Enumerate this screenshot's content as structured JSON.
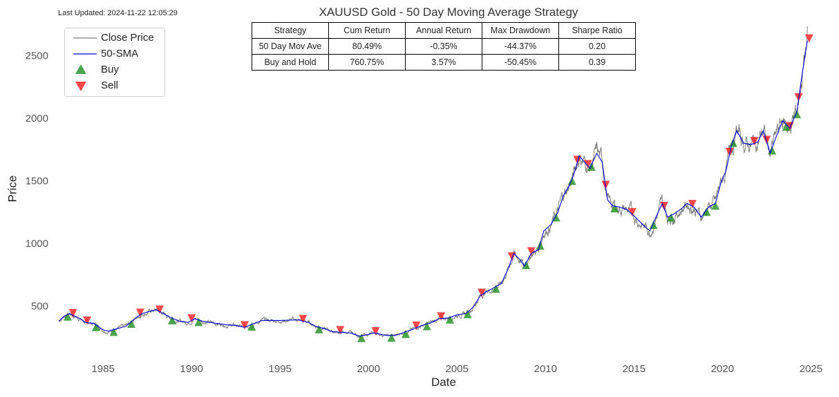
{
  "last_updated": "Last Updated: 2024-11-22 12:05:29",
  "chart_data": {
    "type": "line",
    "title": "XAUUSD Gold - 50 Day Moving Average Strategy",
    "xlabel": "Date",
    "ylabel": "Price",
    "xlim": [
      1982.3,
      2025.1
    ],
    "ylim": [
      100,
      2850
    ],
    "x_ticks": [
      "1985",
      "1990",
      "1995",
      "2000",
      "2005",
      "2010",
      "2015",
      "2020",
      "2025"
    ],
    "y_ticks": [
      "500",
      "1000",
      "1500",
      "2000",
      "2500"
    ],
    "grid": false,
    "legend_position": "top-left",
    "legend": [
      "Close Price",
      "50-SMA",
      "Buy",
      "Sell"
    ],
    "colors": {
      "close": "#808080",
      "sma": "#0000dd",
      "buy": "#1f8f1f",
      "sell": "#ff1a1a"
    },
    "series": [
      {
        "name": "50-SMA",
        "x": [
          1982.5,
          1982.8,
          1983.1,
          1983.4,
          1983.7,
          1984.0,
          1984.5,
          1985.0,
          1985.3,
          1985.8,
          1986.3,
          1986.8,
          1987.2,
          1987.7,
          1988.0,
          1988.4,
          1988.8,
          1989.3,
          1989.8,
          1990.2,
          1990.6,
          1991.0,
          1991.5,
          1992.0,
          1992.5,
          1993.0,
          1993.5,
          1994.0,
          1995.0,
          1996.0,
          1996.6,
          1997.0,
          1997.5,
          1998.0,
          1998.5,
          1999.0,
          1999.5,
          1999.9,
          2000.3,
          2000.7,
          2001.0,
          2001.5,
          2002.0,
          2002.5,
          2003.0,
          2003.5,
          2004.0,
          2004.5,
          2005.0,
          2005.5,
          2005.9,
          2006.3,
          2006.6,
          2007.0,
          2007.5,
          2007.9,
          2008.2,
          2008.5,
          2008.8,
          2009.2,
          2009.6,
          2009.9,
          2010.3,
          2010.7,
          2011.0,
          2011.3,
          2011.6,
          2011.9,
          2012.2,
          2012.5,
          2012.9,
          2013.2,
          2013.5,
          2013.8,
          2014.2,
          2014.6,
          2015.0,
          2015.5,
          2015.9,
          2016.3,
          2016.6,
          2016.9,
          2017.3,
          2017.7,
          2018.0,
          2018.4,
          2018.8,
          2019.2,
          2019.6,
          2019.9,
          2020.2,
          2020.5,
          2020.8,
          2021.2,
          2021.6,
          2022.0,
          2022.3,
          2022.7,
          2023.0,
          2023.4,
          2023.8,
          2024.2,
          2024.5,
          2024.8
        ],
        "values": [
          380,
          420,
          440,
          420,
          400,
          370,
          360,
          310,
          300,
          320,
          340,
          400,
          440,
          460,
          470,
          440,
          410,
          380,
          370,
          400,
          380,
          370,
          360,
          350,
          345,
          330,
          360,
          385,
          385,
          390,
          370,
          340,
          320,
          295,
          290,
          285,
          260,
          270,
          285,
          275,
          265,
          265,
          290,
          315,
          345,
          365,
          400,
          405,
          430,
          440,
          490,
          580,
          610,
          640,
          680,
          800,
          920,
          880,
          820,
          920,
          950,
          1100,
          1150,
          1250,
          1380,
          1450,
          1550,
          1700,
          1650,
          1600,
          1720,
          1650,
          1350,
          1300,
          1290,
          1270,
          1220,
          1150,
          1100,
          1230,
          1320,
          1210,
          1240,
          1280,
          1320,
          1290,
          1210,
          1290,
          1320,
          1480,
          1580,
          1780,
          1900,
          1800,
          1790,
          1810,
          1900,
          1720,
          1840,
          1980,
          1920,
          2050,
          2350,
          2620
        ]
      }
    ],
    "signals": {
      "buy": [
        1983.0,
        1984.6,
        1985.6,
        1986.6,
        1988.9,
        1990.4,
        1993.4,
        1997.2,
        1999.6,
        2001.3,
        2002.1,
        2003.3,
        2004.6,
        2005.6,
        2007.2,
        2008.9,
        2009.7,
        2010.6,
        2011.5,
        2012.6,
        2013.9,
        2016.1,
        2017.1,
        2019.1,
        2019.6,
        2020.6,
        2022.8,
        2023.6,
        2024.2
      ],
      "sell": [
        1983.3,
        1984.1,
        1987.1,
        1988.2,
        1990.0,
        1993.0,
        1996.3,
        1998.4,
        2000.4,
        2002.7,
        2004.1,
        2006.4,
        2008.1,
        2009.2,
        2011.8,
        2012.4,
        2013.4,
        2014.9,
        2016.7,
        2018.3,
        2020.4,
        2021.8,
        2022.5,
        2023.8,
        2024.3,
        2024.9
      ]
    }
  },
  "table": {
    "headers": [
      "Strategy",
      "Cum Return",
      "Annual Return",
      "Max Drawdown",
      "Sharpe Ratio"
    ],
    "rows": [
      [
        "50 Day Mov Ave",
        "80.49%",
        "-0.35%",
        "-44.37%",
        "0.20"
      ],
      [
        "Buy and Hold",
        "760.75%",
        "3.57%",
        "-50.45%",
        "0.39"
      ]
    ]
  }
}
